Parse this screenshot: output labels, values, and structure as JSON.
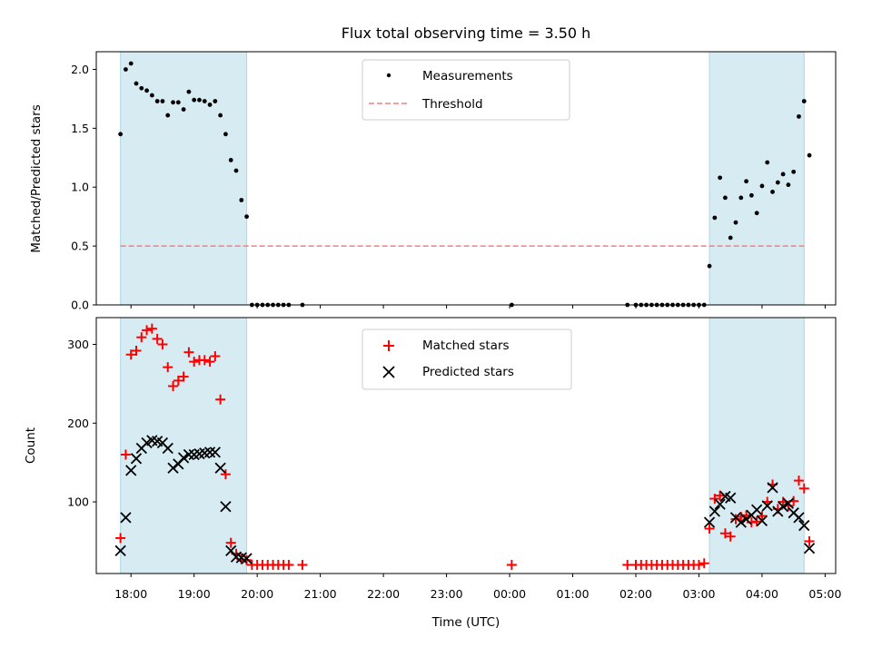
{
  "chart_data": [
    {
      "type": "scatter",
      "title": "Flux total observing time = 3.50 h",
      "ylabel": "Matched/Predicted stars",
      "xlabel": "",
      "ylim": [
        0,
        2.15
      ],
      "yticks": [
        0.0,
        0.5,
        1.0,
        1.5,
        2.0
      ],
      "xlim": [
        "17:27",
        "05:10"
      ],
      "xticks": [
        "18:00",
        "19:00",
        "20:00",
        "21:00",
        "22:00",
        "23:00",
        "00:00",
        "01:00",
        "02:00",
        "03:00",
        "04:00",
        "05:00"
      ],
      "shaded_intervals": [
        [
          "17:50",
          "19:50"
        ],
        [
          "03:10",
          "04:40"
        ]
      ],
      "legend_position": "upper-center",
      "threshold": {
        "name": "Threshold",
        "value": 0.5,
        "x_range": [
          "17:50",
          "04:40"
        ],
        "color": "#f08080",
        "style": "dashed"
      },
      "series": [
        {
          "name": "Measurements",
          "marker": "dot",
          "color": "#000000",
          "points": [
            [
              "17:50",
              1.45
            ],
            [
              "17:55",
              2.0
            ],
            [
              "18:00",
              2.05
            ],
            [
              "18:05",
              1.88
            ],
            [
              "18:10",
              1.84
            ],
            [
              "18:15",
              1.82
            ],
            [
              "18:20",
              1.78
            ],
            [
              "18:25",
              1.73
            ],
            [
              "18:30",
              1.73
            ],
            [
              "18:35",
              1.61
            ],
            [
              "18:40",
              1.72
            ],
            [
              "18:45",
              1.72
            ],
            [
              "18:50",
              1.66
            ],
            [
              "18:55",
              1.81
            ],
            [
              "19:00",
              1.74
            ],
            [
              "19:05",
              1.74
            ],
            [
              "19:10",
              1.73
            ],
            [
              "19:15",
              1.7
            ],
            [
              "19:20",
              1.73
            ],
            [
              "19:25",
              1.61
            ],
            [
              "19:30",
              1.45
            ],
            [
              "19:35",
              1.23
            ],
            [
              "19:40",
              1.14
            ],
            [
              "19:45",
              0.89
            ],
            [
              "19:50",
              0.75
            ],
            [
              "19:55",
              0.0
            ],
            [
              "20:00",
              0.0
            ],
            [
              "20:05",
              0.0
            ],
            [
              "20:10",
              0.0
            ],
            [
              "20:15",
              0.0
            ],
            [
              "20:20",
              0.0
            ],
            [
              "20:25",
              0.0
            ],
            [
              "20:30",
              0.0
            ],
            [
              "20:43",
              0.0
            ],
            [
              "00:02",
              0.0
            ],
            [
              "01:52",
              0.0
            ],
            [
              "02:00",
              0.0
            ],
            [
              "02:05",
              0.0
            ],
            [
              "02:10",
              0.0
            ],
            [
              "02:15",
              0.0
            ],
            [
              "02:20",
              0.0
            ],
            [
              "02:25",
              0.0
            ],
            [
              "02:30",
              0.0
            ],
            [
              "02:35",
              0.0
            ],
            [
              "02:40",
              0.0
            ],
            [
              "02:45",
              0.0
            ],
            [
              "02:50",
              0.0
            ],
            [
              "02:55",
              0.0
            ],
            [
              "03:00",
              0.0
            ],
            [
              "03:05",
              0.0
            ],
            [
              "03:10",
              0.33
            ],
            [
              "03:15",
              0.74
            ],
            [
              "03:20",
              1.08
            ],
            [
              "03:25",
              0.91
            ],
            [
              "03:30",
              0.57
            ],
            [
              "03:35",
              0.7
            ],
            [
              "03:40",
              0.91
            ],
            [
              "03:45",
              1.05
            ],
            [
              "03:50",
              0.93
            ],
            [
              "03:55",
              0.78
            ],
            [
              "04:00",
              1.01
            ],
            [
              "04:05",
              1.21
            ],
            [
              "04:10",
              0.96
            ],
            [
              "04:15",
              1.04
            ],
            [
              "04:20",
              1.11
            ],
            [
              "04:25",
              1.02
            ],
            [
              "04:30",
              1.13
            ],
            [
              "04:35",
              1.6
            ],
            [
              "04:40",
              1.73
            ],
            [
              "04:45",
              1.27
            ]
          ]
        }
      ]
    },
    {
      "type": "scatter",
      "title": "",
      "ylabel": "Count",
      "xlabel": "Time (UTC)",
      "ylim": [
        9,
        334
      ],
      "yticks": [
        100,
        200,
        300
      ],
      "xlim": [
        "17:27",
        "05:10"
      ],
      "xticks": [
        "18:00",
        "19:00",
        "20:00",
        "21:00",
        "22:00",
        "23:00",
        "00:00",
        "01:00",
        "02:00",
        "03:00",
        "04:00",
        "05:00"
      ],
      "shaded_intervals": [
        [
          "17:50",
          "19:50"
        ],
        [
          "03:10",
          "04:40"
        ]
      ],
      "legend_position": "upper-center",
      "series": [
        {
          "name": "Matched stars",
          "marker": "plus",
          "color": "#ff0000",
          "points": [
            [
              "17:50",
              54
            ],
            [
              "17:55",
              160
            ],
            [
              "18:00",
              287
            ],
            [
              "18:05",
              292
            ],
            [
              "18:10",
              309
            ],
            [
              "18:15",
              318
            ],
            [
              "18:20",
              320
            ],
            [
              "18:25",
              307
            ],
            [
              "18:30",
              300
            ],
            [
              "18:35",
              271
            ],
            [
              "18:40",
              247
            ],
            [
              "18:45",
              254
            ],
            [
              "18:50",
              259
            ],
            [
              "18:55",
              290
            ],
            [
              "19:00",
              278
            ],
            [
              "19:05",
              280
            ],
            [
              "19:10",
              280
            ],
            [
              "19:15",
              278
            ],
            [
              "19:20",
              285
            ],
            [
              "19:25",
              230
            ],
            [
              "19:30",
              135
            ],
            [
              "19:35",
              48
            ],
            [
              "19:40",
              34
            ],
            [
              "19:45",
              27
            ],
            [
              "19:50",
              26
            ],
            [
              "19:55",
              20
            ],
            [
              "20:00",
              20
            ],
            [
              "20:05",
              20
            ],
            [
              "20:10",
              20
            ],
            [
              "20:15",
              20
            ],
            [
              "20:20",
              20
            ],
            [
              "20:25",
              20
            ],
            [
              "20:30",
              20
            ],
            [
              "20:43",
              20
            ],
            [
              "00:02",
              20
            ],
            [
              "01:52",
              20
            ],
            [
              "02:00",
              20
            ],
            [
              "02:05",
              20
            ],
            [
              "02:10",
              20
            ],
            [
              "02:15",
              20
            ],
            [
              "02:20",
              20
            ],
            [
              "02:25",
              20
            ],
            [
              "02:30",
              20
            ],
            [
              "02:35",
              20
            ],
            [
              "02:40",
              20
            ],
            [
              "02:45",
              20
            ],
            [
              "02:50",
              20
            ],
            [
              "02:55",
              20
            ],
            [
              "03:00",
              20
            ],
            [
              "03:05",
              22
            ],
            [
              "03:10",
              66
            ],
            [
              "03:15",
              104
            ],
            [
              "03:20",
              108
            ],
            [
              "03:25",
              60
            ],
            [
              "03:30",
              56
            ],
            [
              "03:35",
              78
            ],
            [
              "03:40",
              81
            ],
            [
              "03:45",
              83
            ],
            [
              "03:50",
              74
            ],
            [
              "03:55",
              75
            ],
            [
              "04:00",
              82
            ],
            [
              "04:05",
              100
            ],
            [
              "04:10",
              122
            ],
            [
              "04:15",
              91
            ],
            [
              "04:20",
              100
            ],
            [
              "04:25",
              95
            ],
            [
              "04:30",
              101
            ],
            [
              "04:35",
              127
            ],
            [
              "04:40",
              117
            ],
            [
              "04:45",
              50
            ]
          ]
        },
        {
          "name": "Predicted stars",
          "marker": "x",
          "color": "#000000",
          "points": [
            [
              "17:50",
              38
            ],
            [
              "17:55",
              80
            ],
            [
              "18:00",
              140
            ],
            [
              "18:05",
              155
            ],
            [
              "18:10",
              168
            ],
            [
              "18:15",
              175
            ],
            [
              "18:20",
              178
            ],
            [
              "18:25",
              177
            ],
            [
              "18:30",
              175
            ],
            [
              "18:35",
              168
            ],
            [
              "18:40",
              143
            ],
            [
              "18:45",
              148
            ],
            [
              "18:50",
              156
            ],
            [
              "18:55",
              160
            ],
            [
              "19:00",
              160
            ],
            [
              "19:05",
              161
            ],
            [
              "19:10",
              162
            ],
            [
              "19:15",
              163
            ],
            [
              "19:20",
              163
            ],
            [
              "19:25",
              143
            ],
            [
              "19:30",
              94
            ],
            [
              "19:35",
              38
            ],
            [
              "19:40",
              30
            ],
            [
              "19:45",
              29
            ],
            [
              "19:50",
              28
            ],
            [
              "03:10",
              74
            ],
            [
              "03:15",
              88
            ],
            [
              "03:20",
              97
            ],
            [
              "03:25",
              107
            ],
            [
              "03:30",
              105
            ],
            [
              "03:35",
              80
            ],
            [
              "03:40",
              74
            ],
            [
              "03:45",
              78
            ],
            [
              "03:50",
              83
            ],
            [
              "03:55",
              90
            ],
            [
              "04:00",
              76
            ],
            [
              "04:05",
              95
            ],
            [
              "04:10",
              118
            ],
            [
              "04:15",
              88
            ],
            [
              "04:20",
              94
            ],
            [
              "04:25",
              98
            ],
            [
              "04:30",
              86
            ],
            [
              "04:35",
              80
            ],
            [
              "04:40",
              70
            ],
            [
              "04:45",
              41
            ]
          ]
        }
      ]
    }
  ],
  "colors": {
    "shade": "#add8e6",
    "shade_opacity": 0.5,
    "threshold": "#f08080"
  }
}
